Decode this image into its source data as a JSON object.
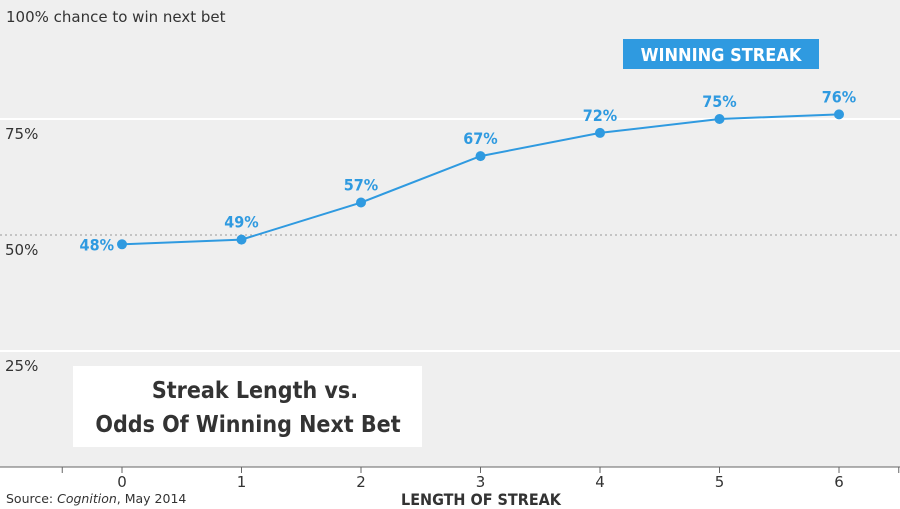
{
  "chart_data": {
    "type": "line",
    "y_axis_title": "100% chance to win next bet",
    "y_ticks": [
      {
        "value": 75,
        "label": "75%"
      },
      {
        "value": 50,
        "label": "50%"
      },
      {
        "value": 25,
        "label": "25%"
      }
    ],
    "ylim": [
      0,
      100
    ],
    "reference_line": {
      "value": 50,
      "style": "dotted"
    },
    "x": [
      0,
      1,
      2,
      3,
      4,
      5,
      6
    ],
    "x_tick_labels": [
      "0",
      "1",
      "2",
      "3",
      "4",
      "5",
      "6"
    ],
    "xlabel": "LENGTH OF STREAK",
    "series": [
      {
        "name": "WINNING STREAK",
        "values": [
          48,
          49,
          57,
          67,
          72,
          75,
          76
        ],
        "labels": [
          "48%",
          "49%",
          "57%",
          "67%",
          "72%",
          "75%",
          "76%"
        ],
        "color": "#2f9ae0"
      }
    ],
    "title_lines": [
      "Streak Length vs.",
      "Odds Of Winning Next Bet"
    ],
    "source": {
      "prefix": "Source: ",
      "publication": "Cognition",
      "suffix": ", May 2014"
    },
    "colors": {
      "plot_background": "#efefef",
      "gridline": "#ffffff",
      "text": "#333333"
    }
  }
}
